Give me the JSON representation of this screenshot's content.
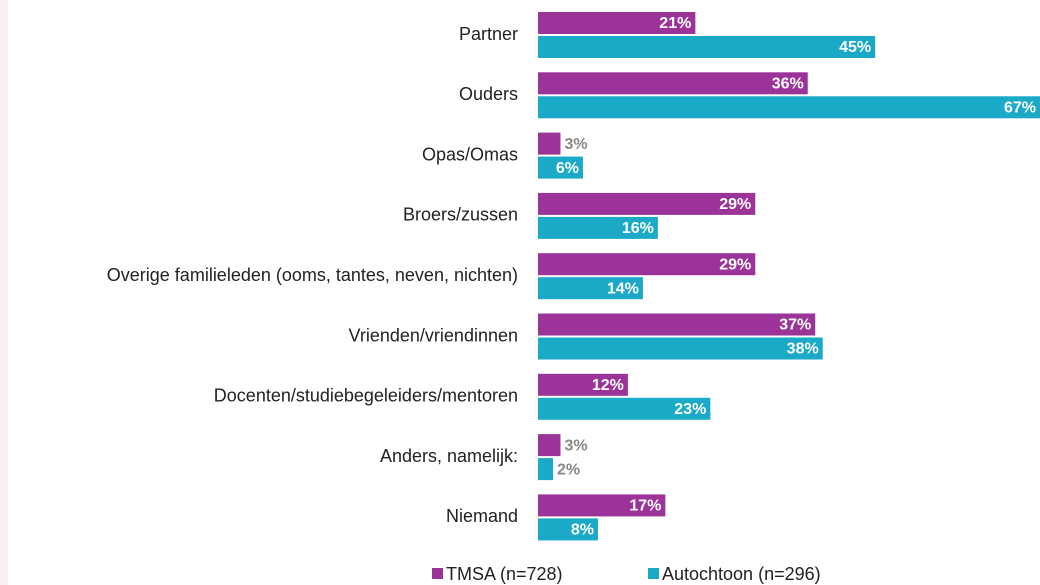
{
  "chart_data": {
    "type": "barh",
    "categories": [
      "Partner",
      "Ouders",
      "Opas/Omas",
      "Broers/zussen",
      "Overige familieleden (ooms, tantes, neven, nichten)",
      "Vrienden/vriendinnen",
      "Docenten/studiebegeleiders/mentoren",
      "Anders, namelijk:",
      "Niemand"
    ],
    "series": [
      {
        "name": "TMSA (n=728)",
        "color": "#9b3399",
        "values": [
          21,
          36,
          3,
          29,
          29,
          37,
          12,
          3,
          17
        ],
        "value_labels": [
          "21%",
          "36%",
          "3%",
          "29%",
          "29%",
          "37%",
          "12%",
          "3%",
          "17%"
        ]
      },
      {
        "name": "Autochtoon (n=296)",
        "color": "#1aa9c6",
        "values": [
          45,
          67,
          6,
          16,
          14,
          38,
          23,
          2,
          8
        ],
        "value_labels": [
          "45%",
          "67%",
          "6%",
          "16%",
          "14%",
          "38%",
          "23%",
          "2%",
          "8%"
        ]
      }
    ],
    "legend": "bottom"
  }
}
